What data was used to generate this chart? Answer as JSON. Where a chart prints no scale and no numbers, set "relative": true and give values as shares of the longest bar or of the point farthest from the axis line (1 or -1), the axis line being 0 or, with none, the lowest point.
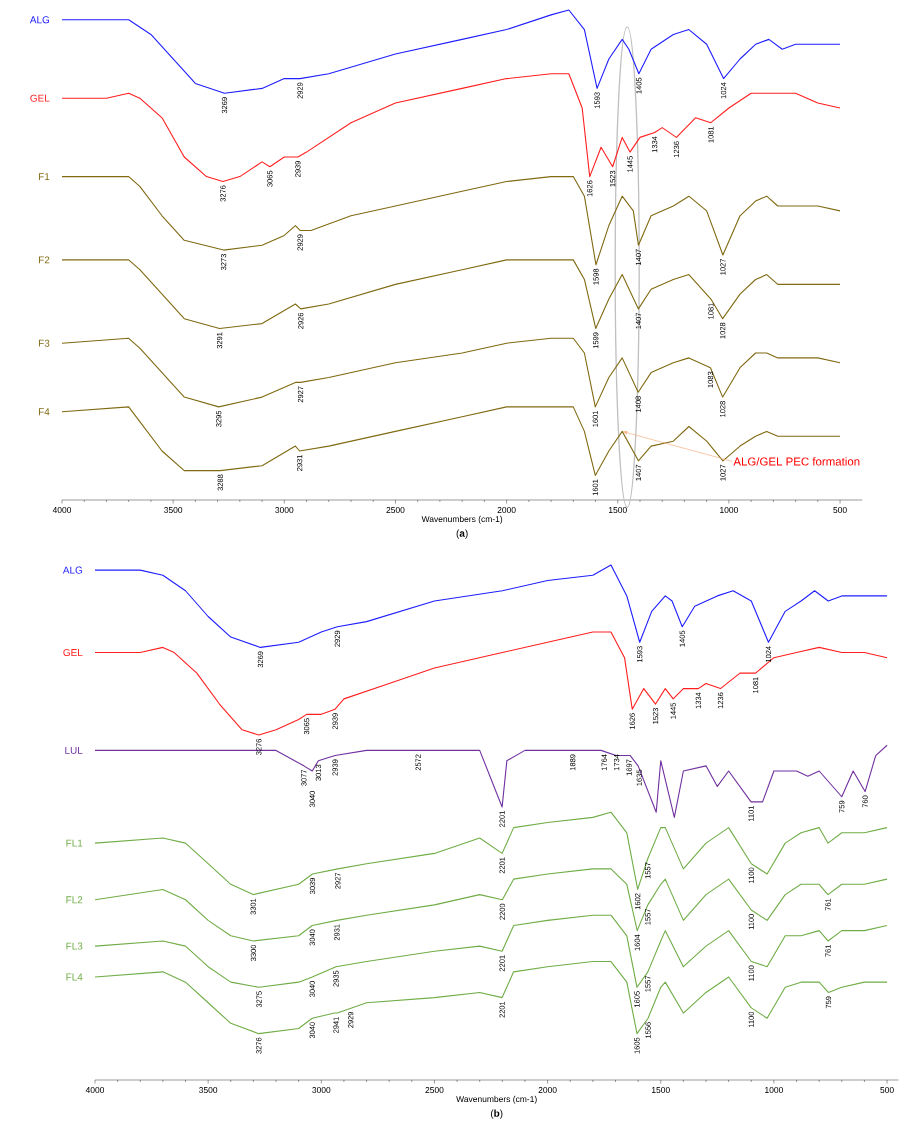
{
  "chart_data": [
    {
      "type": "line",
      "relative": true,
      "xlabel": "Wavenumbers (cm-1)",
      "xlim": [
        4000,
        400
      ],
      "xticks": [
        4000,
        {
          "value": 3900,
          "label": null
        },
        {
          "value": 3800,
          "label": null
        },
        {
          "value": 3700,
          "label": null
        },
        {
          "value": 3600,
          "label": null
        },
        3500,
        {
          "value": 3400,
          "label": null
        },
        {
          "value": 3300,
          "label": null
        },
        {
          "value": 3200,
          "label": null
        },
        {
          "value": 3100,
          "label": null
        },
        3000,
        {
          "value": 2900,
          "label": null
        },
        {
          "value": 2800,
          "label": null
        },
        {
          "value": 2700,
          "label": null
        },
        {
          "value": 2600,
          "label": null
        },
        2500,
        {
          "value": 2400,
          "label": null
        },
        {
          "value": 2300,
          "label": null
        },
        {
          "value": 2200,
          "label": null
        },
        {
          "value": 2100,
          "label": null
        },
        2000,
        {
          "value": 1900,
          "label": null
        },
        {
          "value": 1800,
          "label": null
        },
        {
          "value": 1700,
          "label": null
        },
        {
          "value": 1600,
          "label": null
        },
        1500,
        {
          "value": 1400,
          "label": null
        },
        {
          "value": 1300,
          "label": null
        },
        {
          "value": 1200,
          "label": null
        },
        {
          "value": 1100,
          "label": null
        },
        1000,
        {
          "value": 900,
          "label": null
        },
        {
          "value": 800,
          "label": null
        },
        {
          "value": 700,
          "label": null
        },
        {
          "value": 600,
          "label": null
        },
        500
      ],
      "series": [
        {
          "name": "ALG",
          "color": "#1f1fff",
          "x": [
            4000,
            3800,
            3700,
            3600,
            3500,
            3400,
            3269,
            3100,
            3000,
            2929,
            2800,
            2500,
            2200,
            2000,
            1800,
            1720,
            1650,
            1593,
            1540,
            1480,
            1450,
            1405,
            1350,
            1250,
            1180,
            1100,
            1024,
            950,
            880,
            820,
            760,
            700,
            600,
            500
          ],
          "values": [
            0.98,
            0.98,
            0.98,
            0.95,
            0.9,
            0.85,
            0.83,
            0.84,
            0.86,
            0.86,
            0.87,
            0.91,
            0.94,
            0.96,
            0.99,
            1.0,
            0.96,
            0.84,
            0.9,
            0.94,
            0.92,
            0.87,
            0.92,
            0.95,
            0.96,
            0.93,
            0.86,
            0.9,
            0.93,
            0.94,
            0.92,
            0.93,
            0.93,
            0.93
          ]
        },
        {
          "name": "GEL",
          "color": "#ff1f1f",
          "x": [
            4000,
            3800,
            3700,
            3650,
            3550,
            3450,
            3350,
            3276,
            3200,
            3100,
            3065,
            3000,
            2939,
            2900,
            2700,
            2500,
            2200,
            2000,
            1800,
            1720,
            1660,
            1626,
            1575,
            1523,
            1480,
            1445,
            1400,
            1334,
            1300,
            1236,
            1150,
            1081,
            1000,
            900,
            800,
            700,
            600,
            500
          ],
          "values": [
            0.82,
            0.82,
            0.83,
            0.82,
            0.78,
            0.7,
            0.66,
            0.65,
            0.66,
            0.69,
            0.68,
            0.7,
            0.7,
            0.71,
            0.77,
            0.81,
            0.84,
            0.86,
            0.87,
            0.87,
            0.8,
            0.66,
            0.72,
            0.68,
            0.74,
            0.71,
            0.74,
            0.75,
            0.76,
            0.74,
            0.78,
            0.77,
            0.8,
            0.83,
            0.83,
            0.83,
            0.81,
            0.8
          ]
        },
        {
          "name": "F1",
          "color": "#806a12",
          "x": [
            4000,
            3800,
            3700,
            3650,
            3550,
            3450,
            3273,
            3100,
            3000,
            2950,
            2929,
            2880,
            2700,
            2500,
            2200,
            2000,
            1800,
            1700,
            1650,
            1598,
            1540,
            1480,
            1430,
            1407,
            1350,
            1250,
            1180,
            1100,
            1027,
            950,
            880,
            830,
            780,
            700,
            600,
            500
          ],
          "values": [
            0.66,
            0.66,
            0.66,
            0.64,
            0.58,
            0.53,
            0.51,
            0.52,
            0.54,
            0.56,
            0.55,
            0.55,
            0.58,
            0.6,
            0.63,
            0.65,
            0.66,
            0.66,
            0.62,
            0.48,
            0.56,
            0.62,
            0.59,
            0.52,
            0.58,
            0.6,
            0.62,
            0.59,
            0.5,
            0.58,
            0.61,
            0.62,
            0.6,
            0.6,
            0.6,
            0.59
          ]
        },
        {
          "name": "F2",
          "color": "#806a12",
          "x": [
            4000,
            3700,
            3650,
            3550,
            3450,
            3291,
            3100,
            2950,
            2926,
            2800,
            2500,
            2200,
            2000,
            1800,
            1700,
            1650,
            1599,
            1540,
            1480,
            1407,
            1350,
            1250,
            1180,
            1081,
            1028,
            950,
            880,
            830,
            780,
            700,
            600,
            500
          ],
          "values": [
            0.49,
            0.49,
            0.47,
            0.42,
            0.37,
            0.35,
            0.36,
            0.4,
            0.39,
            0.4,
            0.44,
            0.47,
            0.49,
            0.49,
            0.49,
            0.45,
            0.35,
            0.41,
            0.46,
            0.39,
            0.43,
            0.45,
            0.46,
            0.41,
            0.37,
            0.42,
            0.45,
            0.46,
            0.44,
            0.44,
            0.44,
            0.44
          ]
        },
        {
          "name": "F3",
          "color": "#806a12",
          "x": [
            4000,
            3700,
            3650,
            3550,
            3450,
            3295,
            3100,
            2950,
            2927,
            2800,
            2500,
            2200,
            2000,
            1800,
            1700,
            1650,
            1601,
            1540,
            1480,
            1408,
            1350,
            1250,
            1180,
            1083,
            1028,
            950,
            880,
            830,
            780,
            700,
            600,
            500
          ],
          "values": [
            0.32,
            0.33,
            0.31,
            0.26,
            0.21,
            0.19,
            0.21,
            0.24,
            0.24,
            0.25,
            0.28,
            0.3,
            0.32,
            0.33,
            0.33,
            0.3,
            0.19,
            0.25,
            0.29,
            0.22,
            0.26,
            0.28,
            0.29,
            0.27,
            0.21,
            0.27,
            0.3,
            0.3,
            0.29,
            0.29,
            0.29,
            0.28
          ]
        },
        {
          "name": "F4",
          "color": "#806a12",
          "x": [
            4000,
            3700,
            3650,
            3550,
            3450,
            3288,
            3100,
            2950,
            2931,
            2800,
            2500,
            2200,
            2000,
            1800,
            1700,
            1650,
            1601,
            1540,
            1480,
            1407,
            1350,
            1250,
            1180,
            1100,
            1027,
            950,
            880,
            830,
            780,
            700,
            600,
            500
          ],
          "values": [
            0.18,
            0.19,
            0.16,
            0.1,
            0.06,
            0.06,
            0.07,
            0.11,
            0.1,
            0.11,
            0.14,
            0.17,
            0.19,
            0.19,
            0.19,
            0.14,
            0.05,
            0.1,
            0.14,
            0.08,
            0.11,
            0.12,
            0.15,
            0.12,
            0.08,
            0.11,
            0.13,
            0.14,
            0.13,
            0.13,
            0.13,
            0.13
          ]
        }
      ],
      "annotations": [
        {
          "text": "3269",
          "x": 3269,
          "y": 0.83
        },
        {
          "text": "2929",
          "x": 2929,
          "y": 0.86
        },
        {
          "text": "1593",
          "x": 1593,
          "y": 0.84
        },
        {
          "text": "1405",
          "x": 1405,
          "y": 0.87
        },
        {
          "text": "1024",
          "x": 1024,
          "y": 0.86
        },
        {
          "text": "3276",
          "x": 3276,
          "y": 0.65
        },
        {
          "text": "3065",
          "x": 3065,
          "y": 0.68
        },
        {
          "text": "2939",
          "x": 2939,
          "y": 0.7
        },
        {
          "text": "1626",
          "x": 1626,
          "y": 0.66
        },
        {
          "text": "1523",
          "x": 1523,
          "y": 0.68
        },
        {
          "text": "1445",
          "x": 1445,
          "y": 0.71
        },
        {
          "text": "1334",
          "x": 1334,
          "y": 0.75
        },
        {
          "text": "1236",
          "x": 1236,
          "y": 0.74
        },
        {
          "text": "1081",
          "x": 1081,
          "y": 0.77
        },
        {
          "text": "3273",
          "x": 3273,
          "y": 0.51
        },
        {
          "text": "2929",
          "x": 2929,
          "y": 0.55
        },
        {
          "text": "1598",
          "x": 1598,
          "y": 0.48
        },
        {
          "text": "1407",
          "x": 1407,
          "y": 0.52
        },
        {
          "text": "1027",
          "x": 1027,
          "y": 0.5
        },
        {
          "text": "3291",
          "x": 3291,
          "y": 0.35
        },
        {
          "text": "2926",
          "x": 2926,
          "y": 0.39
        },
        {
          "text": "1599",
          "x": 1599,
          "y": 0.35
        },
        {
          "text": "1407",
          "x": 1407,
          "y": 0.39
        },
        {
          "text": "1081",
          "x": 1081,
          "y": 0.41
        },
        {
          "text": "1028",
          "x": 1028,
          "y": 0.37
        },
        {
          "text": "3295",
          "x": 3295,
          "y": 0.19
        },
        {
          "text": "2927",
          "x": 2927,
          "y": 0.24
        },
        {
          "text": "1601",
          "x": 1601,
          "y": 0.19
        },
        {
          "text": "1408",
          "x": 1408,
          "y": 0.22
        },
        {
          "text": "1083",
          "x": 1083,
          "y": 0.27
        },
        {
          "text": "1028",
          "x": 1028,
          "y": 0.21
        },
        {
          "text": "3288",
          "x": 3288,
          "y": 0.06
        },
        {
          "text": "2931",
          "x": 2931,
          "y": 0.1
        },
        {
          "text": "1601",
          "x": 1601,
          "y": 0.05
        },
        {
          "text": "1407",
          "x": 1407,
          "y": 0.08
        },
        {
          "text": "1027",
          "x": 1027,
          "y": 0.08
        },
        {
          "text": "ALG/GEL PEC formation",
          "x": 1480,
          "y": 0.14
        },
        "(**a**)"
      ]
    },
    {
      "type": "line",
      "relative": true,
      "xlabel": "Wavenumbers (cm-1)",
      "xlim": [
        4000,
        450
      ],
      "xticks": [
        4000,
        {
          "value": 3900,
          "label": null
        },
        {
          "value": 3800,
          "label": null
        },
        {
          "value": 3700,
          "label": null
        },
        {
          "value": 3600,
          "label": null
        },
        3500,
        {
          "value": 3400,
          "label": null
        },
        {
          "value": 3300,
          "label": null
        },
        {
          "value": 3200,
          "label": null
        },
        {
          "value": 3100,
          "label": null
        },
        3000,
        {
          "value": 2900,
          "label": null
        },
        {
          "value": 2800,
          "label": null
        },
        {
          "value": 2700,
          "label": null
        },
        {
          "value": 2600,
          "label": null
        },
        2500,
        {
          "value": 2400,
          "label": null
        },
        {
          "value": 2300,
          "label": null
        },
        {
          "value": 2200,
          "label": null
        },
        {
          "value": 2100,
          "label": null
        },
        2000,
        {
          "value": 1900,
          "label": null
        },
        {
          "value": 1800,
          "label": null
        },
        {
          "value": 1700,
          "label": null
        },
        {
          "value": 1600,
          "label": null
        },
        1500,
        {
          "value": 1400,
          "label": null
        },
        {
          "value": 1300,
          "label": null
        },
        {
          "value": 1200,
          "label": null
        },
        {
          "value": 1100,
          "label": null
        },
        1000,
        {
          "value": 900,
          "label": null
        },
        {
          "value": 800,
          "label": null
        },
        {
          "value": 700,
          "label": null
        },
        {
          "value": 600,
          "label": null
        },
        500
      ],
      "series": [
        {
          "name": "ALG",
          "color": "#1f1fff",
          "x": [
            4000,
            3800,
            3700,
            3600,
            3500,
            3400,
            3269,
            3100,
            3000,
            2929,
            2800,
            2500,
            2200,
            2000,
            1800,
            1720,
            1650,
            1593,
            1540,
            1480,
            1450,
            1405,
            1350,
            1250,
            1180,
            1100,
            1024,
            950,
            880,
            820,
            760,
            700,
            600,
            500
          ],
          "values": [
            0.99,
            0.99,
            0.98,
            0.95,
            0.9,
            0.86,
            0.84,
            0.85,
            0.87,
            0.88,
            0.89,
            0.93,
            0.95,
            0.97,
            0.98,
            1.0,
            0.94,
            0.85,
            0.91,
            0.94,
            0.93,
            0.88,
            0.92,
            0.94,
            0.95,
            0.93,
            0.85,
            0.91,
            0.93,
            0.95,
            0.93,
            0.94,
            0.94,
            0.94
          ]
        },
        {
          "name": "GEL",
          "color": "#ff1f1f",
          "x": [
            4000,
            3800,
            3700,
            3650,
            3550,
            3450,
            3350,
            3276,
            3200,
            3100,
            3065,
            3000,
            2939,
            2900,
            2700,
            2500,
            2200,
            2000,
            1800,
            1720,
            1660,
            1626,
            1575,
            1523,
            1480,
            1445,
            1400,
            1334,
            1300,
            1236,
            1150,
            1081,
            1000,
            900,
            800,
            700,
            600,
            500
          ],
          "values": [
            0.83,
            0.83,
            0.84,
            0.83,
            0.79,
            0.73,
            0.68,
            0.67,
            0.68,
            0.7,
            0.71,
            0.71,
            0.72,
            0.74,
            0.77,
            0.8,
            0.83,
            0.85,
            0.87,
            0.87,
            0.82,
            0.72,
            0.76,
            0.73,
            0.76,
            0.74,
            0.76,
            0.76,
            0.77,
            0.76,
            0.79,
            0.79,
            0.82,
            0.83,
            0.84,
            0.83,
            0.83,
            0.82
          ]
        },
        {
          "name": "LUL",
          "color": "#7030a0",
          "x": [
            4000,
            3200,
            3077,
            3040,
            3013,
            2939,
            2800,
            2572,
            2300,
            2201,
            2180,
            2100,
            1889,
            1764,
            1697,
            1635,
            1600,
            1520,
            1500,
            1440,
            1400,
            1300,
            1250,
            1200,
            1101,
            1050,
            1000,
            900,
            850,
            800,
            700,
            650,
            597,
            550,
            500
          ],
          "values": [
            0.64,
            0.64,
            0.61,
            0.6,
            0.62,
            0.63,
            0.64,
            0.64,
            0.64,
            0.53,
            0.62,
            0.64,
            0.64,
            0.64,
            0.63,
            0.63,
            0.61,
            0.52,
            0.62,
            0.51,
            0.6,
            0.61,
            0.57,
            0.6,
            0.54,
            0.54,
            0.6,
            0.6,
            0.59,
            0.6,
            0.55,
            0.6,
            0.56,
            0.63,
            0.65
          ]
        },
        {
          "name": "FL1",
          "color": "#70ad47",
          "x": [
            4000,
            3700,
            3600,
            3500,
            3400,
            3301,
            3100,
            3039,
            2927,
            2800,
            2500,
            2300,
            2201,
            2150,
            2000,
            1800,
            1720,
            1650,
            1602,
            1557,
            1500,
            1480,
            1400,
            1300,
            1200,
            1100,
            1030,
            950,
            880,
            800,
            761,
            700,
            600,
            500
          ],
          "values": [
            0.46,
            0.47,
            0.46,
            0.42,
            0.38,
            0.36,
            0.38,
            0.4,
            0.41,
            0.42,
            0.44,
            0.47,
            0.44,
            0.49,
            0.5,
            0.51,
            0.52,
            0.48,
            0.37,
            0.43,
            0.49,
            0.49,
            0.41,
            0.46,
            0.49,
            0.42,
            0.4,
            0.46,
            0.48,
            0.49,
            0.46,
            0.48,
            0.48,
            0.49
          ]
        },
        {
          "name": "FL2",
          "color": "#70ad47",
          "x": [
            4000,
            3700,
            3600,
            3500,
            3400,
            3300,
            3100,
            3040,
            2931,
            2800,
            2500,
            2300,
            2200,
            2150,
            2000,
            1800,
            1720,
            1650,
            1604,
            1557,
            1500,
            1480,
            1400,
            1300,
            1200,
            1100,
            1030,
            950,
            880,
            800,
            761,
            700,
            600,
            500
          ],
          "values": [
            0.35,
            0.37,
            0.35,
            0.31,
            0.28,
            0.27,
            0.28,
            0.3,
            0.31,
            0.32,
            0.34,
            0.36,
            0.35,
            0.39,
            0.4,
            0.41,
            0.41,
            0.38,
            0.29,
            0.34,
            0.38,
            0.39,
            0.31,
            0.36,
            0.39,
            0.33,
            0.31,
            0.36,
            0.38,
            0.38,
            0.36,
            0.38,
            0.38,
            0.39
          ]
        },
        {
          "name": "FL3",
          "color": "#70ad47",
          "x": [
            4000,
            3700,
            3600,
            3500,
            3400,
            3275,
            3100,
            3040,
            2935,
            2800,
            2500,
            2300,
            2201,
            2150,
            2000,
            1800,
            1720,
            1650,
            1605,
            1557,
            1500,
            1480,
            1400,
            1300,
            1200,
            1100,
            1030,
            950,
            880,
            800,
            761,
            700,
            600,
            500
          ],
          "values": [
            0.26,
            0.27,
            0.26,
            0.22,
            0.19,
            0.18,
            0.19,
            0.2,
            0.22,
            0.23,
            0.25,
            0.26,
            0.25,
            0.3,
            0.31,
            0.32,
            0.32,
            0.28,
            0.18,
            0.21,
            0.27,
            0.29,
            0.22,
            0.26,
            0.29,
            0.23,
            0.22,
            0.28,
            0.28,
            0.29,
            0.27,
            0.29,
            0.29,
            0.3
          ]
        },
        {
          "name": "FL4",
          "color": "#70ad47",
          "x": [
            4000,
            3700,
            3600,
            3500,
            3400,
            3276,
            3100,
            3040,
            2941,
            2929,
            2800,
            2500,
            2300,
            2201,
            2150,
            2000,
            1800,
            1720,
            1650,
            1605,
            1556,
            1500,
            1480,
            1400,
            1300,
            1200,
            1100,
            1030,
            950,
            880,
            800,
            759,
            700,
            600,
            500
          ],
          "values": [
            0.2,
            0.21,
            0.19,
            0.15,
            0.11,
            0.09,
            0.1,
            0.12,
            0.13,
            0.13,
            0.15,
            0.16,
            0.17,
            0.16,
            0.21,
            0.22,
            0.23,
            0.23,
            0.19,
            0.09,
            0.12,
            0.18,
            0.19,
            0.13,
            0.17,
            0.2,
            0.14,
            0.12,
            0.18,
            0.19,
            0.19,
            0.17,
            0.18,
            0.19,
            0.19
          ]
        }
      ],
      "annotations": [
        {
          "text": "3269",
          "x": 3269,
          "y": 0.84
        },
        {
          "text": "2929",
          "x": 2929,
          "y": 0.88
        },
        {
          "text": "1593",
          "x": 1593,
          "y": 0.85
        },
        {
          "text": "1405",
          "x": 1405,
          "y": 0.88
        },
        {
          "text": "1024",
          "x": 1024,
          "y": 0.85
        },
        {
          "text": "3276",
          "x": 3276,
          "y": 0.67
        },
        {
          "text": "3065",
          "x": 3065,
          "y": 0.71
        },
        {
          "text": "2939",
          "x": 2939,
          "y": 0.72
        },
        {
          "text": "1626",
          "x": 1626,
          "y": 0.72
        },
        {
          "text": "1523",
          "x": 1523,
          "y": 0.73
        },
        {
          "text": "1445",
          "x": 1445,
          "y": 0.74
        },
        {
          "text": "1334",
          "x": 1334,
          "y": 0.76
        },
        {
          "text": "1236",
          "x": 1236,
          "y": 0.76
        },
        {
          "text": "1081",
          "x": 1081,
          "y": 0.79
        },
        {
          "text": "3077",
          "x": 3077,
          "y": 0.61
        },
        {
          "text": "3040",
          "x": 3040,
          "y": 0.6
        },
        {
          "text": "3013",
          "x": 3013,
          "y": 0.62
        },
        {
          "text": "2939",
          "x": 2939,
          "y": 0.63
        },
        {
          "text": "2572",
          "x": 2572,
          "y": 0.64
        },
        {
          "text": "2201",
          "x": 2201,
          "y": 0.53
        },
        {
          "text": "1889",
          "x": 1889,
          "y": 0.64
        },
        {
          "text": "1764",
          "x": 1750,
          "y": 0.64
        },
        {
          "text": "1734",
          "x": 1695,
          "y": 0.64
        },
        {
          "text": "1697",
          "x": 1640,
          "y": 0.63
        },
        {
          "text": "1635",
          "x": 1595,
          "y": 0.61
        },
        {
          "text": "1101",
          "x": 1101,
          "y": 0.54
        },
        {
          "text": "759",
          "x": 700,
          "y": 0.55
        },
        {
          "text": "760",
          "x": 597,
          "y": 0.56
        },
        {
          "text": "3301",
          "x": 3301,
          "y": 0.36
        },
        {
          "text": "3039",
          "x": 3039,
          "y": 0.4
        },
        {
          "text": "2927",
          "x": 2927,
          "y": 0.41
        },
        {
          "text": "2201",
          "x": 2201,
          "y": 0.44
        },
        {
          "text": "1602",
          "x": 1602,
          "y": 0.37
        },
        {
          "text": "1557",
          "x": 1557,
          "y": 0.43
        },
        {
          "text": "1100",
          "x": 1100,
          "y": 0.42
        },
        {
          "text": "3300",
          "x": 3300,
          "y": 0.27
        },
        {
          "text": "3040",
          "x": 3040,
          "y": 0.3
        },
        {
          "text": "2931",
          "x": 2931,
          "y": 0.31
        },
        {
          "text": "2200",
          "x": 2200,
          "y": 0.35
        },
        {
          "text": "1604",
          "x": 1604,
          "y": 0.29
        },
        {
          "text": "1557",
          "x": 1557,
          "y": 0.34
        },
        {
          "text": "1100",
          "x": 1100,
          "y": 0.33
        },
        {
          "text": "761",
          "x": 761,
          "y": 0.36
        },
        {
          "text": "3275",
          "x": 3275,
          "y": 0.18
        },
        {
          "text": "3040",
          "x": 3040,
          "y": 0.2
        },
        {
          "text": "2935",
          "x": 2935,
          "y": 0.22
        },
        {
          "text": "2201",
          "x": 2201,
          "y": 0.25
        },
        {
          "text": "1605",
          "x": 1605,
          "y": 0.18
        },
        {
          "text": "1557",
          "x": 1557,
          "y": 0.21
        },
        {
          "text": "1100",
          "x": 1100,
          "y": 0.23
        },
        {
          "text": "761",
          "x": 761,
          "y": 0.27
        },
        {
          "text": "3276",
          "x": 3276,
          "y": 0.09
        },
        {
          "text": "3040",
          "x": 3040,
          "y": 0.12
        },
        {
          "text": "2941",
          "x": 2935,
          "y": 0.13
        },
        {
          "text": "2929",
          "x": 2870,
          "y": 0.14
        },
        {
          "text": "2201",
          "x": 2201,
          "y": 0.16
        },
        {
          "text": "1605",
          "x": 1605,
          "y": 0.09
        },
        {
          "text": "1556",
          "x": 1556,
          "y": 0.12
        },
        {
          "text": "1100",
          "x": 1100,
          "y": 0.14
        },
        {
          "text": "759",
          "x": 759,
          "y": 0.17
        },
        "(**b**)"
      ]
    }
  ]
}
